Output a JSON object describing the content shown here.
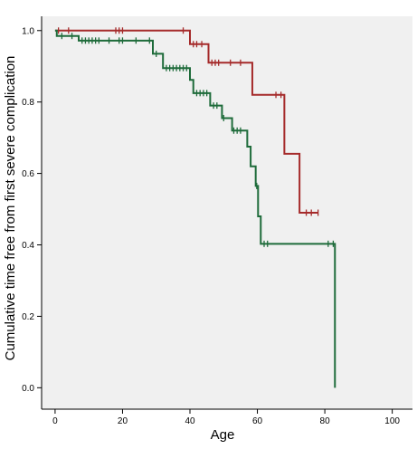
{
  "chart_data": {
    "type": "line",
    "title": "",
    "xlabel": "Age",
    "ylabel": "Cumulative time free from first severe complication",
    "xlim": [
      -4,
      106
    ],
    "ylim": [
      -0.06,
      1.04
    ],
    "x_ticks": [
      0,
      20,
      40,
      60,
      80,
      100
    ],
    "y_ticks": [
      0.0,
      0.2,
      0.4,
      0.6,
      0.8,
      1.0
    ],
    "x_tick_labels": [
      "0",
      "20",
      "40",
      "60",
      "80",
      "100"
    ],
    "y_tick_labels": [
      "0.0",
      "0.2",
      "0.4",
      "0.6",
      "0.8",
      "1.0"
    ],
    "grid": false,
    "background_color": "#f0f0f0",
    "series": [
      {
        "color": "#a52a2a",
        "steps": [
          [
            0,
            1.0
          ],
          [
            40,
            0.962
          ],
          [
            45.5,
            0.91
          ],
          [
            58.5,
            0.82
          ],
          [
            68,
            0.655
          ],
          [
            72.5,
            0.49
          ],
          [
            78,
            0.49
          ]
        ],
        "censored": [
          [
            1,
            1.0
          ],
          [
            4,
            1.0
          ],
          [
            18,
            1.0
          ],
          [
            19,
            1.0
          ],
          [
            20,
            1.0
          ],
          [
            38,
            1.0
          ],
          [
            41,
            0.962
          ],
          [
            42,
            0.962
          ],
          [
            43.5,
            0.962
          ],
          [
            46.5,
            0.91
          ],
          [
            47.5,
            0.91
          ],
          [
            48.5,
            0.91
          ],
          [
            52,
            0.91
          ],
          [
            55,
            0.91
          ],
          [
            65.5,
            0.82
          ],
          [
            67,
            0.82
          ],
          [
            74.5,
            0.49
          ],
          [
            76,
            0.49
          ],
          [
            78,
            0.49
          ]
        ]
      },
      {
        "color": "#1e6b3a",
        "steps": [
          [
            0,
            1.0
          ],
          [
            0.5,
            0.985
          ],
          [
            7,
            0.972
          ],
          [
            29,
            0.935
          ],
          [
            32,
            0.895
          ],
          [
            40,
            0.862
          ],
          [
            41,
            0.825
          ],
          [
            46,
            0.79
          ],
          [
            49.5,
            0.755
          ],
          [
            52.5,
            0.72
          ],
          [
            57,
            0.675
          ],
          [
            58,
            0.62
          ],
          [
            59.5,
            0.565
          ],
          [
            60.2,
            0.48
          ],
          [
            61,
            0.403
          ],
          [
            83,
            0.0
          ]
        ],
        "censored": [
          [
            2,
            0.985
          ],
          [
            5,
            0.985
          ],
          [
            8,
            0.972
          ],
          [
            9,
            0.972
          ],
          [
            10,
            0.972
          ],
          [
            11,
            0.972
          ],
          [
            12,
            0.972
          ],
          [
            13,
            0.972
          ],
          [
            16,
            0.972
          ],
          [
            19,
            0.972
          ],
          [
            20,
            0.972
          ],
          [
            24,
            0.972
          ],
          [
            28,
            0.972
          ],
          [
            30,
            0.935
          ],
          [
            33,
            0.895
          ],
          [
            34,
            0.895
          ],
          [
            35,
            0.895
          ],
          [
            36,
            0.895
          ],
          [
            37,
            0.895
          ],
          [
            38,
            0.895
          ],
          [
            39,
            0.895
          ],
          [
            42,
            0.825
          ],
          [
            43,
            0.825
          ],
          [
            44,
            0.825
          ],
          [
            45,
            0.825
          ],
          [
            47,
            0.79
          ],
          [
            48,
            0.79
          ],
          [
            50,
            0.755
          ],
          [
            53,
            0.72
          ],
          [
            54,
            0.72
          ],
          [
            55,
            0.72
          ],
          [
            59.8,
            0.565
          ],
          [
            62,
            0.403
          ],
          [
            63,
            0.403
          ],
          [
            81,
            0.403
          ],
          [
            82.5,
            0.403
          ]
        ]
      }
    ]
  }
}
